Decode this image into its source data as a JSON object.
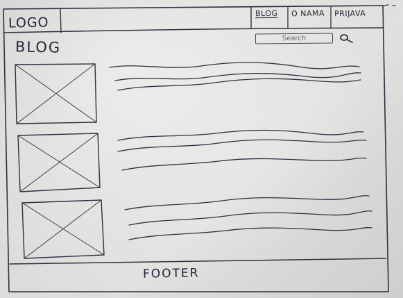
{
  "header": {
    "logo": "LOGO",
    "nav": [
      {
        "label": "BLOG"
      },
      {
        "label": "O NAMA"
      },
      {
        "label": "PRIJAVA"
      }
    ]
  },
  "main": {
    "title": "BLOG",
    "search": {
      "placeholder": "Search"
    },
    "posts": [
      {
        "image_icon": "image-placeholder-icon"
      },
      {
        "image_icon": "image-placeholder-icon"
      },
      {
        "image_icon": "image-placeholder-icon"
      }
    ]
  },
  "footer": {
    "label": "FOOTER"
  },
  "colors": {
    "ink": "#2a2a35",
    "paper": "#e6e6e4"
  }
}
